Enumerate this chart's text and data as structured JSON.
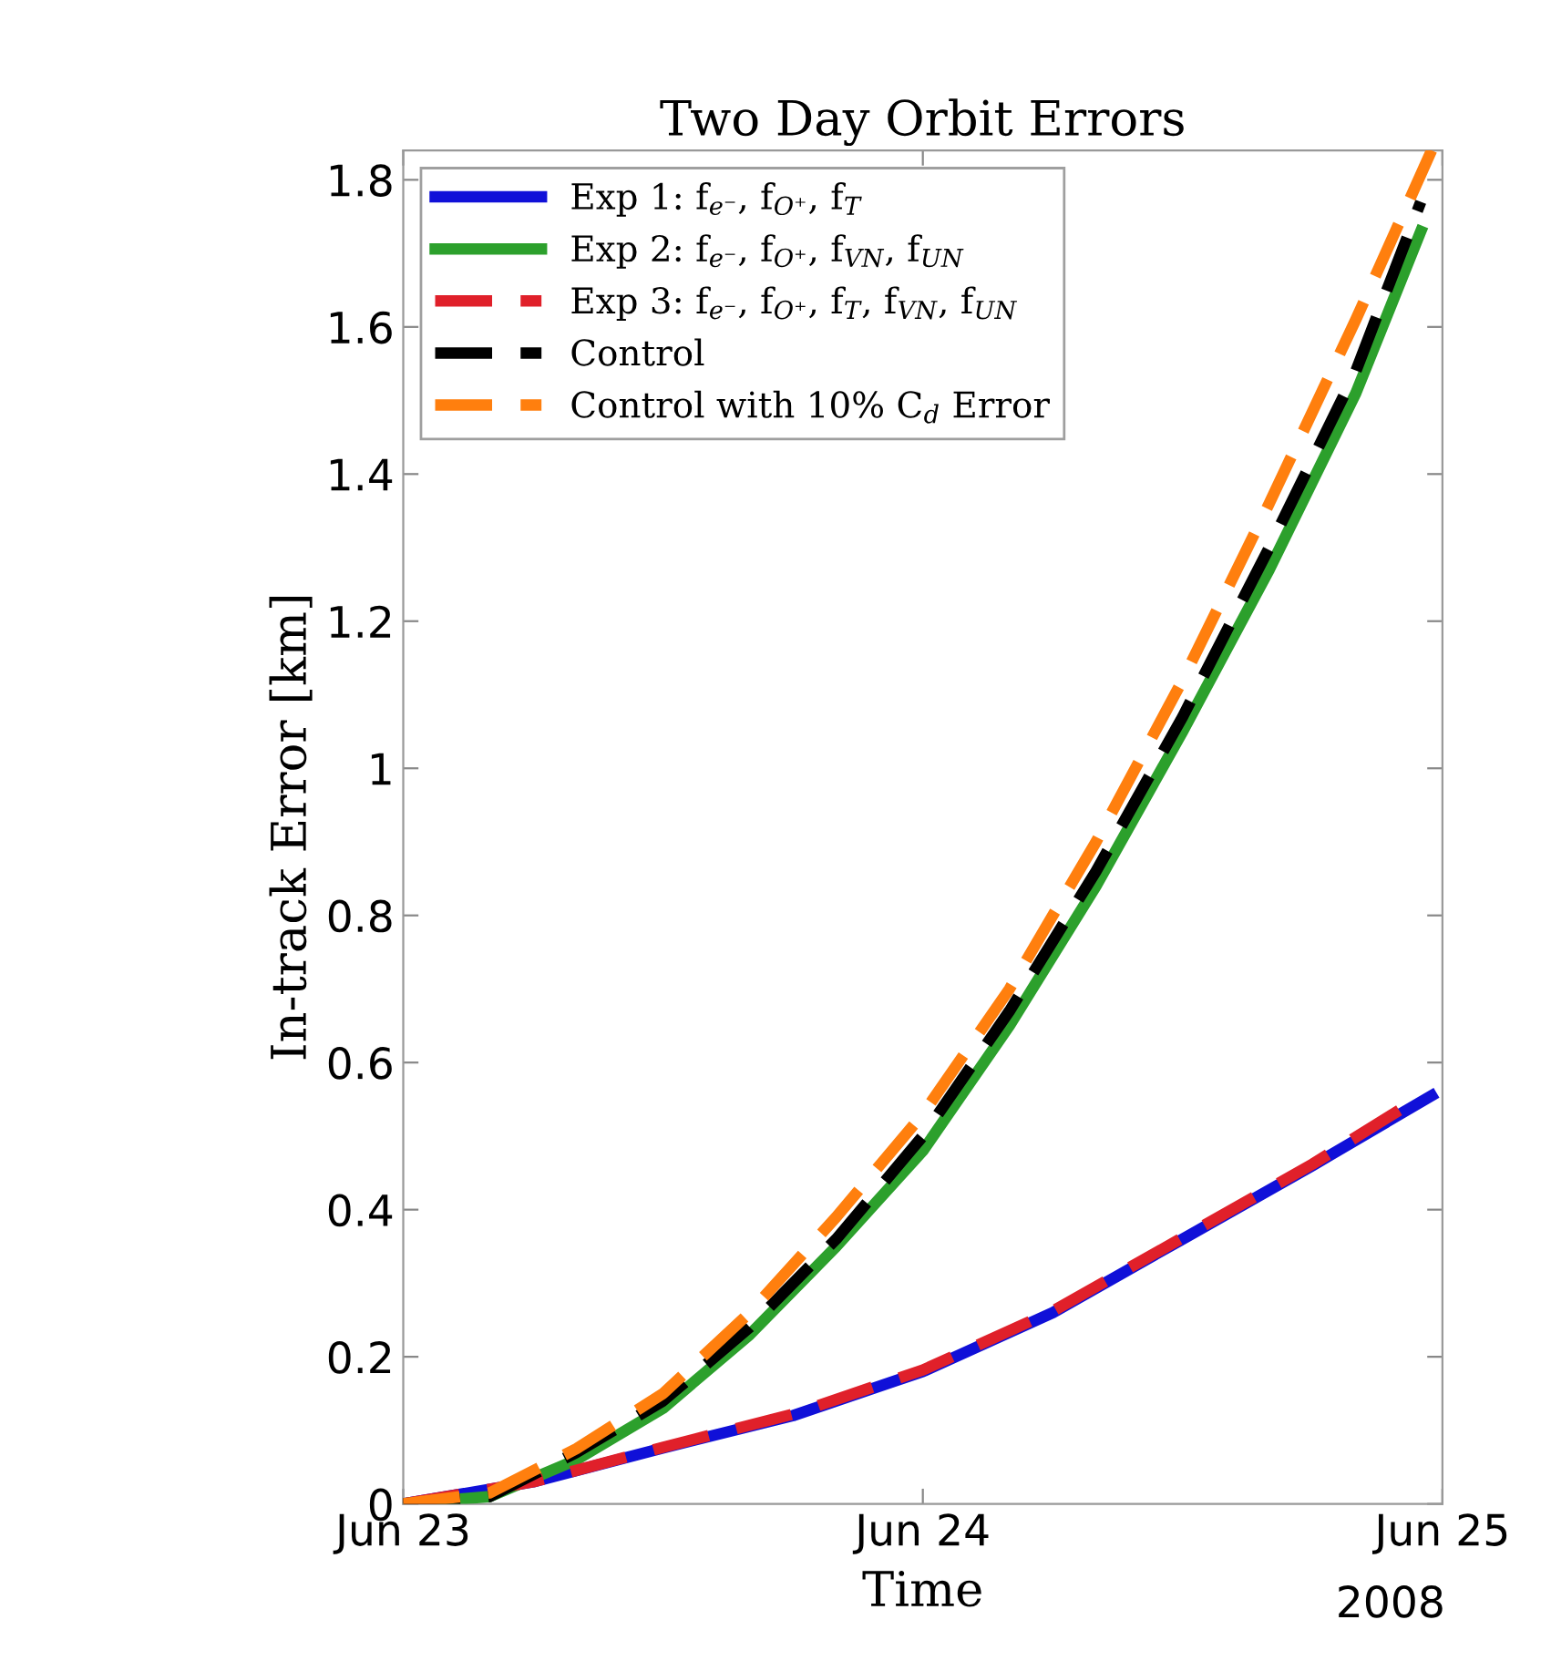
{
  "chart_data": {
    "type": "line",
    "title": "Two Day Orbit Errors",
    "xlabel": "Time",
    "ylabel": "In-track Error [km]",
    "annotations": [
      "2008"
    ],
    "xlim": [
      "2008-06-23",
      "2008-06-25"
    ],
    "xticks": [
      {
        "value": "2008-06-23",
        "label": "Jun 23"
      },
      {
        "value": "2008-06-24",
        "label": "Jun 24"
      },
      {
        "value": "2008-06-25",
        "label": "Jun 25"
      }
    ],
    "ylim": [
      0,
      1.84
    ],
    "yticks": [
      0,
      0.2,
      0.4,
      0.6,
      0.8,
      1,
      1.2,
      1.4,
      1.6,
      1.8
    ],
    "grid": false,
    "legend": "top left",
    "series": [
      {
        "name": "Exp 1: f$_{e⁻}$, f$_{O⁺}$, f$_{T}$",
        "color": "#1010d8",
        "line_style": "solid",
        "x": [
          "2008-06-23T00:00",
          "2008-06-23T06:00",
          "2008-06-23T12:00",
          "2008-06-23T18:00",
          "2008-06-24T00:00",
          "2008-06-24T06:00",
          "2008-06-24T12:00",
          "2008-06-24T18:00",
          "2008-06-24T23:30"
        ],
        "values": [
          0,
          0.03,
          0.076,
          0.12,
          0.18,
          0.26,
          0.36,
          0.46,
          0.555
        ]
      },
      {
        "name": "Exp 2: f$_{e⁻}$, f$_{O⁺}$, f$_{VN}$, f$_{UN}$",
        "color": "#2ca02c",
        "line_style": "solid",
        "x": [
          "2008-06-23T00:00",
          "2008-06-23T04:00",
          "2008-06-23T08:00",
          "2008-06-23T12:00",
          "2008-06-23T16:00",
          "2008-06-23T20:00",
          "2008-06-24T00:00",
          "2008-06-24T04:00",
          "2008-06-24T08:00",
          "2008-06-24T12:00",
          "2008-06-24T16:00",
          "2008-06-24T20:00",
          "2008-06-24T23:00"
        ],
        "values": [
          0,
          0.01,
          0.06,
          0.13,
          0.23,
          0.35,
          0.48,
          0.65,
          0.84,
          1.05,
          1.27,
          1.51,
          1.73
        ]
      },
      {
        "name": "Exp 3: f$_{e⁻}$, f$_{O⁺}$, f$_{T}$, f$_{VN}$, f$_{UN}$",
        "color": "#e0202a",
        "line_style": "dashed",
        "x": [
          "2008-06-23T00:00",
          "2008-06-23T06:00",
          "2008-06-23T12:00",
          "2008-06-23T18:00",
          "2008-06-24T00:00",
          "2008-06-24T06:00",
          "2008-06-24T12:00",
          "2008-06-24T18:00",
          "2008-06-24T22:00"
        ],
        "values": [
          0,
          0.03,
          0.077,
          0.122,
          0.182,
          0.262,
          0.362,
          0.462,
          0.535
        ]
      },
      {
        "name": "Control",
        "color": "#000000",
        "line_style": "dashed",
        "x": [
          "2008-06-23T00:00",
          "2008-06-23T04:00",
          "2008-06-23T08:00",
          "2008-06-23T12:00",
          "2008-06-23T16:00",
          "2008-06-23T20:00",
          "2008-06-24T00:00",
          "2008-06-24T04:00",
          "2008-06-24T08:00",
          "2008-06-24T12:00",
          "2008-06-24T16:00",
          "2008-06-24T20:00",
          "2008-06-24T23:00"
        ],
        "values": [
          0,
          0.01,
          0.07,
          0.14,
          0.24,
          0.36,
          0.5,
          0.67,
          0.86,
          1.07,
          1.3,
          1.54,
          1.77
        ]
      },
      {
        "name": "Control with 10% C$_{d}$ Error",
        "color": "#ff7f0e",
        "line_style": "dashed",
        "x": [
          "2008-06-23T00:00",
          "2008-06-23T04:00",
          "2008-06-23T08:00",
          "2008-06-23T12:00",
          "2008-06-23T16:00",
          "2008-06-23T20:00",
          "2008-06-24T00:00",
          "2008-06-24T04:00",
          "2008-06-24T08:00",
          "2008-06-24T12:00",
          "2008-06-24T16:00",
          "2008-06-24T20:00",
          "2008-06-24T23:30"
        ],
        "values": [
          0,
          0.015,
          0.075,
          0.15,
          0.26,
          0.39,
          0.53,
          0.7,
          0.9,
          1.12,
          1.36,
          1.61,
          1.84
        ]
      }
    ]
  }
}
